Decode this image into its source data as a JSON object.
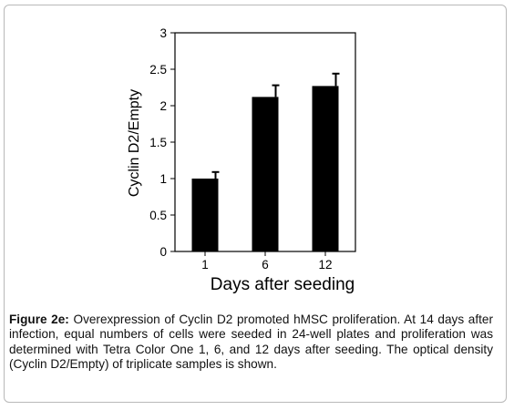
{
  "chart_data": {
    "type": "bar",
    "categories": [
      "1",
      "6",
      "12"
    ],
    "values": [
      1.0,
      2.12,
      2.27
    ],
    "errors": [
      0.09,
      0.16,
      0.17
    ],
    "xlabel": "Days after seeding",
    "ylabel": "Cyclin D2/Empty",
    "ylim": [
      0,
      3
    ],
    "yticks": [
      "0",
      "0.5",
      "1",
      "1.5",
      "2",
      "2.5",
      "3"
    ],
    "grid": false,
    "legend": "none",
    "bar_color": "#000000"
  },
  "caption": {
    "label": "Figure 2e:",
    "text": " Overexpression of Cyclin D2 promoted hMSC proliferation. At 14 days after infection, equal numbers of cells were seeded in 24-well plates and proliferation was determined with Tetra Color One 1, 6, and 12 days after seeding. The optical density (Cyclin D2/Empty) of triplicate samples is shown."
  }
}
